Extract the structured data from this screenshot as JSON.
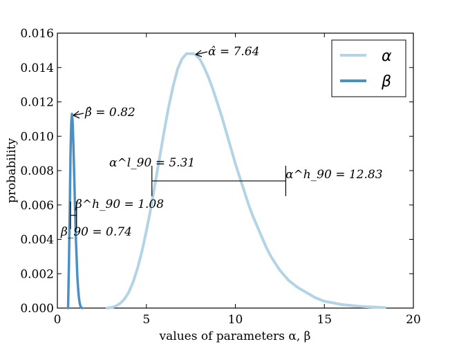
{
  "chart_data": {
    "type": "line",
    "title": "",
    "xlabel": "values of parameters α, β",
    "ylabel": "probability",
    "xlim": [
      0,
      20
    ],
    "ylim": [
      0,
      0.016
    ],
    "x_ticks": [
      "0",
      "5",
      "10",
      "15",
      "20"
    ],
    "y_ticks": [
      "0.000",
      "0.002",
      "0.004",
      "0.006",
      "0.008",
      "0.010",
      "0.012",
      "0.014",
      "0.016"
    ],
    "grid": false,
    "legend": {
      "placement": "top-right",
      "entries": [
        "α",
        "β"
      ]
    },
    "series": [
      {
        "name": "α",
        "color": "#b3d4e5",
        "x": [
          2.8,
          3.0,
          3.25,
          3.5,
          3.75,
          4.0,
          4.25,
          4.5,
          4.75,
          5.0,
          5.25,
          5.5,
          5.75,
          6.0,
          6.25,
          6.5,
          6.75,
          7.0,
          7.25,
          7.5,
          7.64,
          7.75,
          8.0,
          8.25,
          8.5,
          8.75,
          9.0,
          9.25,
          9.5,
          9.75,
          10.0,
          10.25,
          10.5,
          10.75,
          11.0,
          11.25,
          11.5,
          11.75,
          12.0,
          12.25,
          12.5,
          12.75,
          13.0,
          13.5,
          14.0,
          14.5,
          15.0,
          15.5,
          16.0,
          16.5,
          17.0,
          17.5,
          18.0,
          18.4
        ],
        "y": [
          0.0,
          3e-05,
          0.0001,
          0.00025,
          0.0005,
          0.0009,
          0.0015,
          0.0023,
          0.0033,
          0.0045,
          0.0058,
          0.0073,
          0.0088,
          0.0103,
          0.0117,
          0.0129,
          0.0139,
          0.0145,
          0.0148,
          0.0148,
          0.0148,
          0.01475,
          0.0145,
          0.014,
          0.0134,
          0.0127,
          0.0119,
          0.0111,
          0.0102,
          0.0093,
          0.0084,
          0.0076,
          0.0068,
          0.006,
          0.0053,
          0.0047,
          0.0041,
          0.0035,
          0.003,
          0.0026,
          0.0022,
          0.0019,
          0.0016,
          0.0012,
          0.0009,
          0.0006,
          0.0004,
          0.0003,
          0.0002,
          0.00015,
          0.0001,
          7e-05,
          5e-05,
          3e-05
        ]
      },
      {
        "name": "β",
        "color": "#4a90c4",
        "x": [
          0.6,
          0.65,
          0.7,
          0.74,
          0.78,
          0.82,
          0.86,
          0.9,
          0.95,
          1.0,
          1.05,
          1.08,
          1.12,
          1.16,
          1.2,
          1.25,
          1.3,
          1.35,
          1.4
        ],
        "y": [
          0.0,
          0.0025,
          0.006,
          0.0092,
          0.0108,
          0.0113,
          0.0108,
          0.0095,
          0.0075,
          0.0055,
          0.0038,
          0.003,
          0.0019,
          0.0012,
          0.0007,
          0.0003,
          0.0001,
          3e-05,
          0.0
        ]
      }
    ],
    "annotations": [
      {
        "label": "α̂ = 7.64",
        "x": 7.64,
        "y": 0.0148
      },
      {
        "label": "β̂ = 0.82",
        "x": 0.82,
        "y": 0.0113
      },
      {
        "label": "α^l_90 = 5.31",
        "x": 5.31
      },
      {
        "label": "α^h_90 = 12.83",
        "x": 12.83
      },
      {
        "label": "β^h_90 = 1.08",
        "x": 1.08
      },
      {
        "label": "β_90 = 0.74",
        "x": 0.74
      }
    ],
    "intervals": [
      {
        "series": "α",
        "low": 5.31,
        "high": 12.83,
        "level": 0.0074
      },
      {
        "series": "β",
        "low": 0.74,
        "high": 1.08,
        "level": 0.0054
      }
    ]
  }
}
